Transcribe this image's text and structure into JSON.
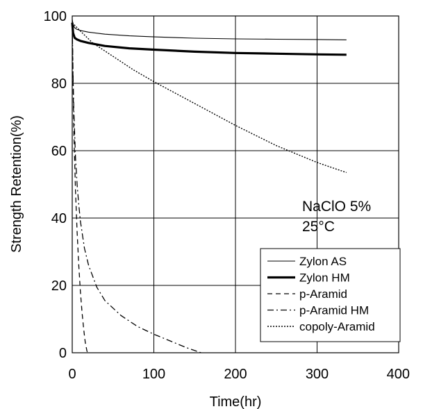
{
  "chart_data": {
    "type": "line",
    "title": "",
    "xlabel": "Time(hr)",
    "ylabel": "Strength Retention(%)",
    "xlim": [
      0,
      400
    ],
    "ylim": [
      0,
      100
    ],
    "xticks": [
      0,
      100,
      200,
      300,
      400
    ],
    "yticks": [
      0,
      20,
      40,
      60,
      80,
      100
    ],
    "grid": true,
    "legend_position": "bottom-right",
    "annotations": [
      "NaClO 5%",
      "25°C"
    ],
    "series": [
      {
        "name": "Zylon AS",
        "style": "thin-solid",
        "x": [
          0,
          1,
          3,
          6,
          10,
          20,
          40,
          70,
          100,
          150,
          200,
          250,
          300,
          336
        ],
        "y": [
          99,
          97.5,
          96.5,
          96,
          95.7,
          95.2,
          94.6,
          94.1,
          93.8,
          93.4,
          93.2,
          93.1,
          93,
          92.9
        ]
      },
      {
        "name": "Zylon HM",
        "style": "thick-solid",
        "x": [
          0,
          1,
          3,
          6,
          10,
          20,
          40,
          70,
          100,
          150,
          200,
          250,
          300,
          336
        ],
        "y": [
          98,
          95,
          93.5,
          93,
          92.6,
          92,
          91.1,
          90.4,
          90,
          89.4,
          89,
          88.8,
          88.6,
          88.5
        ]
      },
      {
        "name": "p-Aramid",
        "style": "dashed",
        "x": [
          0,
          1,
          2,
          4,
          6,
          8,
          10,
          12,
          14,
          16,
          18,
          19
        ],
        "y": [
          98,
          80,
          66,
          48,
          36,
          26,
          18,
          12,
          7,
          3,
          0.5,
          0
        ]
      },
      {
        "name": "p-Aramid HM",
        "style": "dashdot",
        "x": [
          0,
          1,
          2,
          4,
          6,
          8,
          10,
          15,
          20,
          30,
          40,
          60,
          80,
          100,
          120,
          140,
          158
        ],
        "y": [
          98,
          82,
          72,
          58,
          50,
          44,
          39,
          31,
          26,
          19.5,
          15.5,
          11,
          7.8,
          5.5,
          3.5,
          1.5,
          0
        ]
      },
      {
        "name": "copoly-Aramid",
        "style": "dotted",
        "x": [
          0,
          10,
          25,
          50,
          75,
          100,
          150,
          200,
          250,
          300,
          336
        ],
        "y": [
          98,
          95.5,
          92,
          88,
          84,
          80.5,
          74,
          67.5,
          61.5,
          56.5,
          53.5
        ]
      }
    ]
  }
}
